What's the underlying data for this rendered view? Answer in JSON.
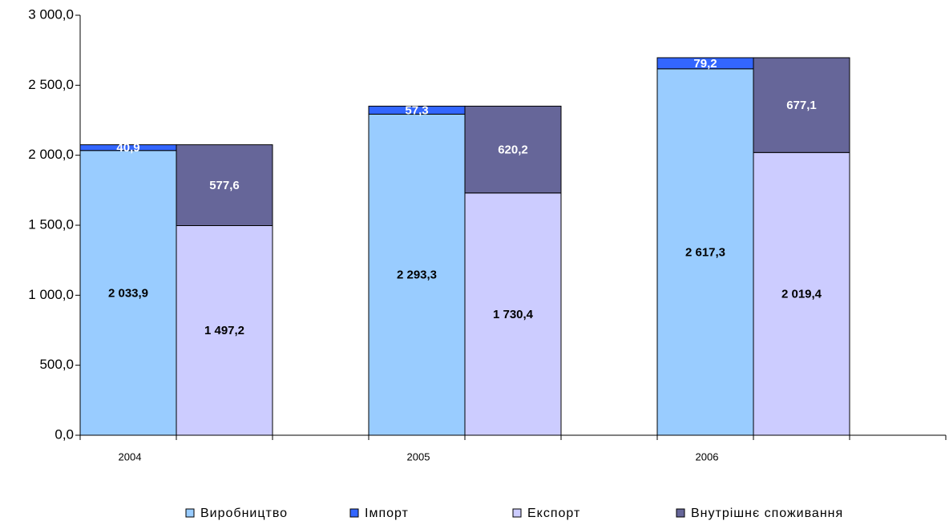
{
  "chart_data": {
    "type": "bar",
    "categories": [
      "2004",
      "2005",
      "2006"
    ],
    "series": [
      {
        "name": "Виробництво",
        "color": "#99ccff",
        "values": [
          2033.9,
          2293.3,
          2617.3
        ],
        "value_labels": [
          "2 033,9",
          "2 293,3",
          "2 617,3"
        ]
      },
      {
        "name": "Імпорт",
        "color": "#3366ff",
        "values": [
          40.9,
          57.3,
          79.2
        ],
        "value_labels": [
          "40,9",
          "57,3",
          "79,2"
        ]
      },
      {
        "name": "Експорт",
        "color": "#ccccff",
        "values": [
          1497.2,
          1730.4,
          2019.4
        ],
        "value_labels": [
          "1 497,2",
          "1 730,4",
          "2 019,4"
        ]
      },
      {
        "name": "Внутрішнє споживання",
        "color": "#666699",
        "values": [
          577.6,
          620.2,
          677.1
        ],
        "value_labels": [
          "577,6",
          "620,2",
          "677,1"
        ]
      }
    ],
    "ylim": [
      0,
      3000
    ],
    "yticks": [
      {
        "value": 0,
        "label": "0,0"
      },
      {
        "value": 500,
        "label": "500,0"
      },
      {
        "value": 1000,
        "label": "1 000,0"
      },
      {
        "value": 1500,
        "label": "1 500,0"
      },
      {
        "value": 2000,
        "label": "2 000,0"
      },
      {
        "value": 2500,
        "label": "2 500,0"
      },
      {
        "value": 3000,
        "label": "3 000,0"
      }
    ],
    "grid": false,
    "legend": "bottom"
  }
}
